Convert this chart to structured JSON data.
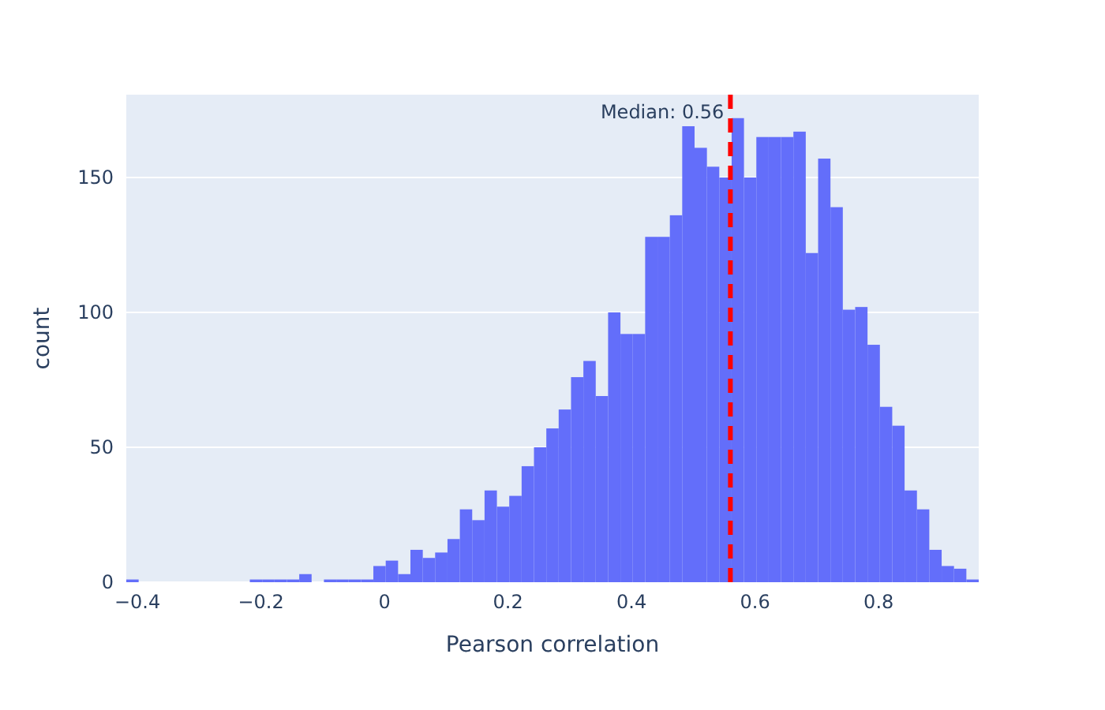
{
  "chart_data": {
    "type": "histogram",
    "xlabel": "Pearson correlation",
    "ylabel": "count",
    "color": "#636efa",
    "bins": [
      -0.418,
      -0.398,
      -0.378,
      -0.358,
      -0.338,
      -0.318,
      -0.298,
      -0.278,
      -0.258,
      -0.238,
      -0.218,
      -0.198,
      -0.178,
      -0.158,
      -0.138,
      -0.118,
      -0.098,
      -0.078,
      -0.058,
      -0.038,
      -0.018,
      0.002,
      0.022,
      0.042,
      0.062,
      0.082,
      0.102,
      0.122,
      0.142,
      0.162,
      0.182,
      0.202,
      0.222,
      0.242,
      0.262,
      0.282,
      0.302,
      0.322,
      0.342,
      0.362,
      0.382,
      0.402,
      0.422,
      0.442,
      0.462,
      0.482,
      0.502,
      0.522,
      0.542,
      0.562,
      0.582,
      0.602,
      0.622,
      0.642,
      0.662,
      0.682,
      0.702,
      0.722,
      0.742,
      0.762,
      0.782,
      0.802,
      0.822,
      0.842,
      0.862,
      0.882,
      0.902,
      0.922,
      0.942,
      0.962
    ],
    "values": [
      1,
      0,
      0,
      0,
      0,
      0,
      0,
      0,
      0,
      0,
      1,
      1,
      1,
      1,
      3,
      0,
      1,
      1,
      1,
      1,
      6,
      8,
      3,
      12,
      9,
      11,
      16,
      27,
      23,
      34,
      28,
      32,
      43,
      50,
      57,
      64,
      76,
      82,
      69,
      100,
      92,
      92,
      128,
      128,
      136,
      169,
      161,
      154,
      150,
      172,
      150,
      165,
      165,
      165,
      167,
      122,
      157,
      139,
      101,
      102,
      88,
      65,
      58,
      34,
      27,
      12,
      6,
      5,
      1
    ],
    "xlim": [
      -0.418,
      0.962
    ],
    "ylim": [
      0,
      180.7
    ],
    "xticks": [
      {
        "value": -0.4,
        "label": "−0.4"
      },
      {
        "value": -0.2,
        "label": "−0.2"
      },
      0,
      0.2,
      0.4,
      0.6,
      0.8
    ],
    "yticks": [
      0,
      50,
      100,
      150
    ],
    "grid": "y",
    "ref_lines": [
      {
        "axis": "x",
        "value": 0.56,
        "label": "Median: 0.56",
        "color": "#ff0000",
        "line_style": "dashed"
      }
    ]
  }
}
